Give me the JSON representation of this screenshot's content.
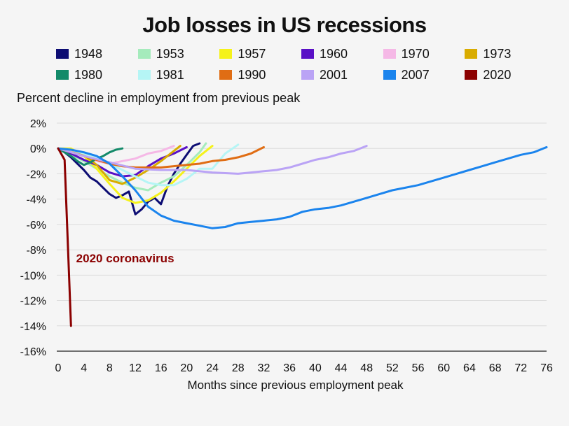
{
  "header": {
    "title": "Job losses in US recessions",
    "subtitle": "Percent decline in employment from previous peak"
  },
  "chart_data": {
    "type": "line",
    "title": "Job losses in US recessions",
    "ylabel": "Percent decline in employment from previous peak",
    "xlabel": "Months since previous employment peak",
    "xlim": [
      0,
      76
    ],
    "ylim": [
      -16,
      2
    ],
    "xticks": [
      0,
      4,
      8,
      12,
      16,
      20,
      24,
      28,
      32,
      36,
      40,
      44,
      48,
      52,
      56,
      60,
      64,
      68,
      72,
      76
    ],
    "yticks": [
      2,
      0,
      -2,
      -4,
      -6,
      -8,
      -10,
      -12,
      -14,
      -16
    ],
    "ytick_labels": [
      "2%",
      "0%",
      "-2%",
      "-4%",
      "-6%",
      "-8%",
      "-10%",
      "-12%",
      "-14%",
      "-16%"
    ],
    "grid": true,
    "legend_position": "top",
    "annotations": [
      {
        "text": "2020 coronavirus",
        "x": 2.8,
        "y": -9.0,
        "color": "#8b0000"
      }
    ],
    "series": [
      {
        "name": "1948",
        "color": "#0d0d73",
        "x": [
          0,
          1,
          2,
          3,
          4,
          5,
          6,
          7,
          8,
          9,
          10,
          11,
          12,
          13,
          14,
          15,
          16,
          17,
          18,
          19,
          20,
          21,
          22
        ],
        "y": [
          0,
          -0.3,
          -0.7,
          -1.2,
          -1.7,
          -2.3,
          -2.6,
          -3.1,
          -3.6,
          -3.9,
          -3.7,
          -3.4,
          -5.2,
          -4.8,
          -4.2,
          -3.9,
          -4.4,
          -3.0,
          -2.0,
          -1.2,
          -0.5,
          0.2,
          0.4
        ]
      },
      {
        "name": "1953",
        "color": "#a5ebbc",
        "x": [
          0,
          2,
          4,
          6,
          8,
          10,
          12,
          14,
          16,
          18,
          20,
          22,
          23
        ],
        "y": [
          0,
          -0.5,
          -1.0,
          -1.6,
          -2.2,
          -2.7,
          -3.1,
          -3.3,
          -2.7,
          -2.2,
          -1.3,
          -0.3,
          0.4
        ]
      },
      {
        "name": "1957",
        "color": "#f5f21a",
        "x": [
          0,
          2,
          4,
          6,
          8,
          10,
          12,
          14,
          16,
          18,
          20,
          22,
          24
        ],
        "y": [
          0,
          0,
          -0.6,
          -1.6,
          -2.8,
          -3.9,
          -4.3,
          -4.1,
          -3.5,
          -2.6,
          -1.6,
          -0.6,
          0.2
        ]
      },
      {
        "name": "1960",
        "color": "#5a10c6",
        "x": [
          0,
          2,
          4,
          6,
          8,
          10,
          12,
          14,
          16,
          18,
          20
        ],
        "y": [
          0,
          -0.4,
          -0.9,
          -1.3,
          -1.9,
          -2.2,
          -2.1,
          -1.4,
          -0.8,
          -0.4,
          0.1
        ]
      },
      {
        "name": "1970",
        "color": "#f5b8e6",
        "x": [
          0,
          2,
          4,
          6,
          8,
          10,
          12,
          14,
          16,
          18
        ],
        "y": [
          0,
          -0.3,
          -0.6,
          -1.0,
          -1.2,
          -1.0,
          -0.8,
          -0.4,
          -0.2,
          0.2
        ]
      },
      {
        "name": "1973",
        "color": "#d9ac00",
        "x": [
          0,
          2,
          4,
          6,
          8,
          10,
          12,
          14,
          16,
          18,
          19
        ],
        "y": [
          0,
          -0.1,
          -0.5,
          -1.3,
          -2.5,
          -2.8,
          -2.3,
          -1.7,
          -1.0,
          -0.2,
          0.2
        ]
      },
      {
        "name": "1980",
        "color": "#138a69",
        "x": [
          0,
          1,
          2,
          3,
          4,
          5,
          6,
          7,
          8,
          9,
          10
        ],
        "y": [
          0,
          -0.3,
          -0.6,
          -1.0,
          -1.3,
          -1.1,
          -0.8,
          -0.6,
          -0.3,
          -0.1,
          0
        ]
      },
      {
        "name": "1981",
        "color": "#b5f5f5",
        "x": [
          0,
          2,
          4,
          6,
          8,
          10,
          12,
          14,
          16,
          18,
          20,
          22,
          24,
          26,
          28
        ],
        "y": [
          0,
          -0.1,
          -0.4,
          -0.8,
          -1.2,
          -1.7,
          -2.2,
          -2.7,
          -2.9,
          -2.9,
          -2.4,
          -1.6,
          -1.6,
          -0.4,
          0.3
        ]
      },
      {
        "name": "1990",
        "color": "#e06d14",
        "x": [
          0,
          2,
          4,
          6,
          8,
          10,
          12,
          14,
          16,
          18,
          20,
          22,
          24,
          26,
          28,
          30,
          32
        ],
        "y": [
          0,
          -0.3,
          -0.6,
          -0.9,
          -1.2,
          -1.4,
          -1.5,
          -1.5,
          -1.5,
          -1.4,
          -1.3,
          -1.2,
          -1.0,
          -0.9,
          -0.7,
          -0.4,
          0.1
        ]
      },
      {
        "name": "2001",
        "color": "#baa3f5",
        "x": [
          0,
          4,
          8,
          12,
          16,
          20,
          24,
          28,
          30,
          32,
          34,
          36,
          38,
          40,
          42,
          44,
          46,
          48
        ],
        "y": [
          0,
          -0.6,
          -1.1,
          -1.6,
          -1.7,
          -1.7,
          -1.9,
          -2.0,
          -1.9,
          -1.8,
          -1.7,
          -1.5,
          -1.2,
          -0.9,
          -0.7,
          -0.4,
          -0.2,
          0.2
        ]
      },
      {
        "name": "2007",
        "color": "#1b84ed",
        "x": [
          0,
          2,
          4,
          6,
          8,
          10,
          12,
          14,
          16,
          18,
          20,
          22,
          24,
          26,
          28,
          30,
          32,
          34,
          36,
          38,
          40,
          42,
          44,
          46,
          48,
          50,
          52,
          54,
          56,
          58,
          60,
          62,
          64,
          66,
          68,
          70,
          72,
          74,
          76
        ],
        "y": [
          0,
          -0.1,
          -0.3,
          -0.6,
          -1.2,
          -2.2,
          -3.3,
          -4.6,
          -5.3,
          -5.7,
          -5.9,
          -6.1,
          -6.3,
          -6.2,
          -5.9,
          -5.8,
          -5.7,
          -5.6,
          -5.4,
          -5.0,
          -4.8,
          -4.7,
          -4.5,
          -4.2,
          -3.9,
          -3.6,
          -3.3,
          -3.1,
          -2.9,
          -2.6,
          -2.3,
          -2.0,
          -1.7,
          -1.4,
          -1.1,
          -0.8,
          -0.5,
          -0.3,
          0.1
        ]
      },
      {
        "name": "2020",
        "color": "#8b0000",
        "x": [
          0,
          1,
          2
        ],
        "y": [
          0,
          -0.9,
          -14.0
        ]
      }
    ]
  }
}
